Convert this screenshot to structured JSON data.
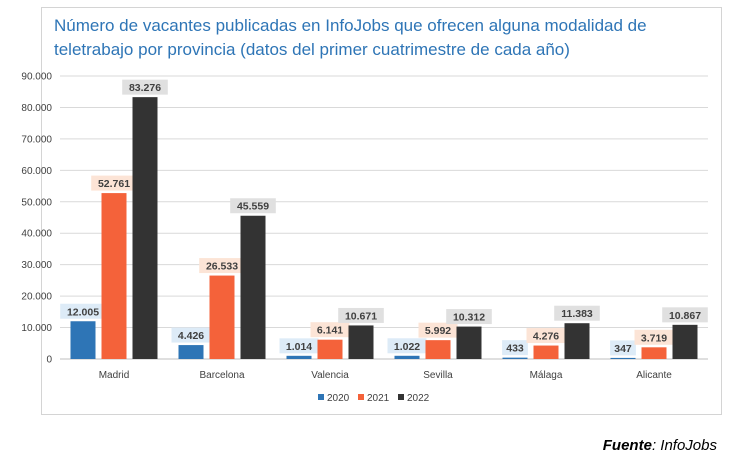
{
  "chart_data": {
    "type": "bar",
    "title": "Número de vacantes publicadas en InfoJobs que ofrecen alguna modalidad de teletrabajo por provincia (datos del primer cuatrimestre de cada año)",
    "categories": [
      "Madrid",
      "Barcelona",
      "Valencia",
      "Sevilla",
      "Málaga",
      "Alicante"
    ],
    "series": [
      {
        "name": "2020",
        "color": "#2e75b6",
        "label_bg": "#ddebf7",
        "values": [
          12005,
          4426,
          1014,
          1022,
          433,
          347
        ],
        "labels": [
          "12.005",
          "4.426",
          "1.014",
          "1.022",
          "433",
          "347"
        ]
      },
      {
        "name": "2021",
        "color": "#f4623a",
        "label_bg": "#fce4d6",
        "values": [
          52761,
          26533,
          6141,
          5992,
          4276,
          3719
        ],
        "labels": [
          "52.761",
          "26.533",
          "6.141",
          "5.992",
          "4.276",
          "3.719"
        ]
      },
      {
        "name": "2022",
        "color": "#333333",
        "label_bg": "#e0e0e0",
        "values": [
          83276,
          45559,
          10671,
          10312,
          11383,
          10867
        ],
        "labels": [
          "83.276",
          "45.559",
          "10.671",
          "10.312",
          "11.383",
          "10.867"
        ]
      }
    ],
    "ylim": [
      0,
      90000
    ],
    "yticks": [
      0,
      10000,
      20000,
      30000,
      40000,
      50000,
      60000,
      70000,
      80000,
      90000
    ],
    "ytick_labels": [
      "0",
      "10.000",
      "20.000",
      "30.000",
      "40.000",
      "50.000",
      "60.000",
      "70.000",
      "80.000",
      "90.000"
    ],
    "grid": true,
    "legend": "bottom-center",
    "xlabel": "",
    "ylabel": ""
  },
  "source": {
    "label": "Fuente",
    "value": "InfoJobs"
  }
}
